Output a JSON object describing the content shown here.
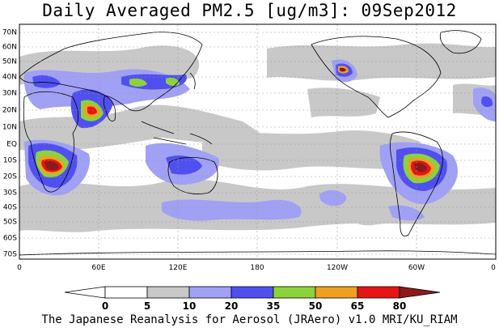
{
  "title": "Daily Averaged PM2.5 [ug/m3]: 09Sep2012",
  "footer": "The Japanese Reanalysis for Aerosol (JRAero) v1.0 MRI/KU_RIAM",
  "lat_labels": [
    "70N",
    "60N",
    "50N",
    "40N",
    "30N",
    "20N",
    "10N",
    "EQ",
    "10S",
    "20S",
    "30S",
    "40S",
    "50S",
    "60S",
    "70S"
  ],
  "lon_labels": [
    "0",
    "60E",
    "120E",
    "180",
    "120W",
    "60W",
    "0"
  ],
  "colorbar": {
    "levels": [
      "0",
      "5",
      "10",
      "20",
      "35",
      "50",
      "65",
      "80"
    ],
    "colors": [
      "#ffffff",
      "#c8c8c8",
      "#a0a0f5",
      "#5050f0",
      "#8cd23c",
      "#f0a020",
      "#e61414",
      "#8c1a1a"
    ]
  },
  "map_colors": {
    "ocean": "#ffffff",
    "land_outline": "#000000",
    "grid": "#9a9a9a"
  }
}
